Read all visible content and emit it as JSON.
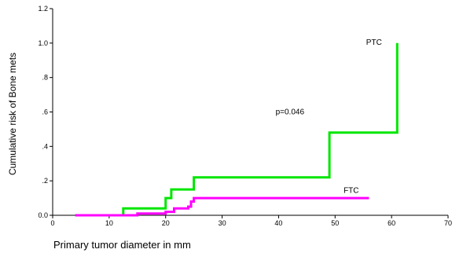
{
  "chart_data": {
    "type": "line",
    "step": true,
    "xlabel": "Primary tumor diameter in mm",
    "ylabel": "Cumulative risk of Bone mets",
    "xlim": [
      0,
      70
    ],
    "ylim": [
      0.0,
      1.2
    ],
    "x_ticks": [
      {
        "value": 0,
        "label": "0"
      },
      {
        "value": 10,
        "label": "10"
      },
      {
        "value": 20,
        "label": "20"
      },
      {
        "value": 30,
        "label": "30"
      },
      {
        "value": 40,
        "label": "40"
      },
      {
        "value": 50,
        "label": "50"
      },
      {
        "value": 60,
        "label": "60"
      },
      {
        "value": 70,
        "label": "70"
      }
    ],
    "y_ticks": [
      {
        "value": 0.0,
        "label": "0.0"
      },
      {
        "value": 0.2,
        "label": ".2"
      },
      {
        "value": 0.4,
        "label": ".4"
      },
      {
        "value": 0.6,
        "label": ".6"
      },
      {
        "value": 0.8,
        "label": ".8"
      },
      {
        "value": 1.0,
        "label": "1.0"
      },
      {
        "value": 1.2,
        "label": "1.2"
      }
    ],
    "series": [
      {
        "name": "PTC",
        "color": "#00e600",
        "points": [
          [
            4,
            0
          ],
          [
            12.5,
            0
          ],
          [
            12.5,
            0.04
          ],
          [
            20,
            0.04
          ],
          [
            20,
            0.1
          ],
          [
            21,
            0.1
          ],
          [
            21,
            0.15
          ],
          [
            25,
            0.15
          ],
          [
            25,
            0.22
          ],
          [
            49,
            0.22
          ],
          [
            49,
            0.48
          ],
          [
            61,
            0.48
          ],
          [
            61,
            1.0
          ]
        ]
      },
      {
        "name": "FTC",
        "color": "#ff00ff",
        "points": [
          [
            4,
            0
          ],
          [
            15,
            0
          ],
          [
            15,
            0.01
          ],
          [
            20,
            0.01
          ],
          [
            20,
            0.02
          ],
          [
            21.5,
            0.02
          ],
          [
            21.5,
            0.04
          ],
          [
            24,
            0.04
          ],
          [
            24,
            0.05
          ],
          [
            24.5,
            0.05
          ],
          [
            24.5,
            0.08
          ],
          [
            25,
            0.08
          ],
          [
            25,
            0.1
          ],
          [
            56,
            0.1
          ]
        ]
      }
    ],
    "annotations": [
      {
        "text": "p=0.046",
        "x": 42,
        "y": 0.6
      }
    ]
  }
}
